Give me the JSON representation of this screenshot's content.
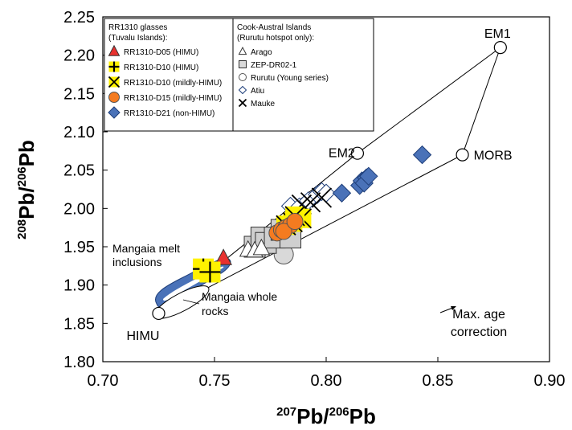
{
  "chart_data": {
    "type": "scatter",
    "xlabel": {
      "sup": "207",
      "base": "Pb/",
      "sup2": "206",
      "base2": "Pb"
    },
    "ylabel": {
      "sup": "208",
      "base": "Pb/",
      "sup2": "206",
      "base2": "Pb"
    },
    "xlim": [
      0.7,
      0.9
    ],
    "ylim": [
      1.8,
      2.25
    ],
    "xticks": [
      "0.70",
      "0.75",
      "0.80",
      "0.85",
      "0.90"
    ],
    "yticks": [
      "1.80",
      "1.85",
      "1.90",
      "1.95",
      "2.00",
      "2.05",
      "2.10",
      "2.15",
      "2.20",
      "2.25"
    ],
    "grid": false,
    "legend_left": {
      "title": "RR1310 glasses (Tuvalu Islands):",
      "items": [
        {
          "label": "RR1310-D05 (HIMU)",
          "marker": "triangle",
          "color": "#e8312f"
        },
        {
          "label": "RR1310-D10 (HIMU)",
          "marker": "plus",
          "color": "#fff200"
        },
        {
          "label": "RR1310-D10 (mildly-HIMU)",
          "marker": "x",
          "color": "#fff200"
        },
        {
          "label": "RR1310-D15 (mildly-HIMU)",
          "marker": "circle",
          "color": "#f47b20"
        },
        {
          "label": "RR1310-D21 (non-HIMU)",
          "marker": "diamond",
          "color": "#4a72b8"
        }
      ]
    },
    "legend_right": {
      "title": "Cook-Austral Islands (Rurutu hotspot only):",
      "items": [
        {
          "label": "Arago",
          "marker": "triangle"
        },
        {
          "label": "ZEP-DR02-1",
          "marker": "square"
        },
        {
          "label": "Rurutu (Young series)",
          "marker": "circle"
        },
        {
          "label": "Atiu",
          "marker": "diamond"
        },
        {
          "label": "Mauke",
          "marker": "x"
        }
      ]
    },
    "end_members": [
      {
        "label": "EM1",
        "x": 0.878,
        "y": 2.21
      },
      {
        "label": "EM2",
        "x": 0.814,
        "y": 2.072
      },
      {
        "label": "MORB",
        "x": 0.861,
        "y": 2.07
      },
      {
        "label": "HIMU",
        "x": 0.725,
        "y": 1.863
      }
    ],
    "annotations": {
      "melt_inclusions": [
        "Mangaia melt",
        "inclusions"
      ],
      "whole_rocks": [
        "Mangaia whole",
        "rocks"
      ],
      "age_correction": [
        "Max. age",
        "correction"
      ]
    },
    "series": [
      {
        "name": "Rurutu (Young series)",
        "marker": "circle",
        "points": [
          [
            0.781,
            1.94
          ],
          [
            0.772,
            1.952
          ]
        ]
      },
      {
        "name": "ZEP-DR02-1",
        "marker": "square",
        "points": [
          [
            0.768,
            1.95
          ],
          [
            0.771,
            1.962
          ],
          [
            0.773,
            1.955
          ],
          [
            0.777,
            1.962
          ],
          [
            0.78,
            1.972
          ],
          [
            0.784,
            1.962
          ]
        ]
      },
      {
        "name": "Arago",
        "marker": "triangle",
        "points": [
          [
            0.765,
            1.946
          ],
          [
            0.768,
            1.945
          ],
          [
            0.771,
            1.948
          ]
        ]
      },
      {
        "name": "Atiu",
        "marker": "diamond",
        "points": [
          [
            0.784,
            2.003
          ],
          [
            0.788,
            2.002
          ],
          [
            0.792,
            2.01
          ],
          [
            0.796,
            2.018
          ],
          [
            0.798,
            2.022
          ],
          [
            0.8,
            2.02
          ]
        ]
      },
      {
        "name": "Mauke",
        "marker": "x",
        "points": [
          [
            0.789,
            2.005
          ],
          [
            0.793,
            2.008
          ],
          [
            0.798,
            2.014
          ]
        ]
      },
      {
        "name": "RR1310-D05 (HIMU)",
        "marker": "triangle",
        "color": "#e8312f",
        "points": [
          [
            0.754,
            1.935
          ]
        ]
      },
      {
        "name": "RR1310-D10 (HIMU)",
        "marker": "plus",
        "color": "#fff200",
        "points": [
          [
            0.745,
            1.921
          ],
          [
            0.748,
            1.917
          ]
        ]
      },
      {
        "name": "RR1310-D10 (mildly-HIMU)",
        "marker": "x",
        "color": "#fff200",
        "points": [
          [
            0.785,
            1.982
          ],
          [
            0.789,
            1.987
          ],
          [
            0.786,
            1.99
          ],
          [
            0.782,
            1.978
          ]
        ]
      },
      {
        "name": "RR1310-D15 (mildly-HIMU)",
        "marker": "circle",
        "color": "#f47b20",
        "points": [
          [
            0.778,
            1.968
          ],
          [
            0.78,
            1.972
          ],
          [
            0.782,
            1.975
          ],
          [
            0.784,
            1.978
          ],
          [
            0.781,
            1.97
          ],
          [
            0.786,
            1.983
          ]
        ]
      },
      {
        "name": "RR1310-D21 (non-HIMU)",
        "marker": "diamond",
        "color": "#4a72b8",
        "points": [
          [
            0.807,
            2.02
          ],
          [
            0.815,
            2.03
          ],
          [
            0.816,
            2.036
          ],
          [
            0.818,
            2.04
          ],
          [
            0.817,
            2.033
          ],
          [
            0.819,
            2.042
          ],
          [
            0.843,
            2.07
          ]
        ]
      }
    ]
  }
}
